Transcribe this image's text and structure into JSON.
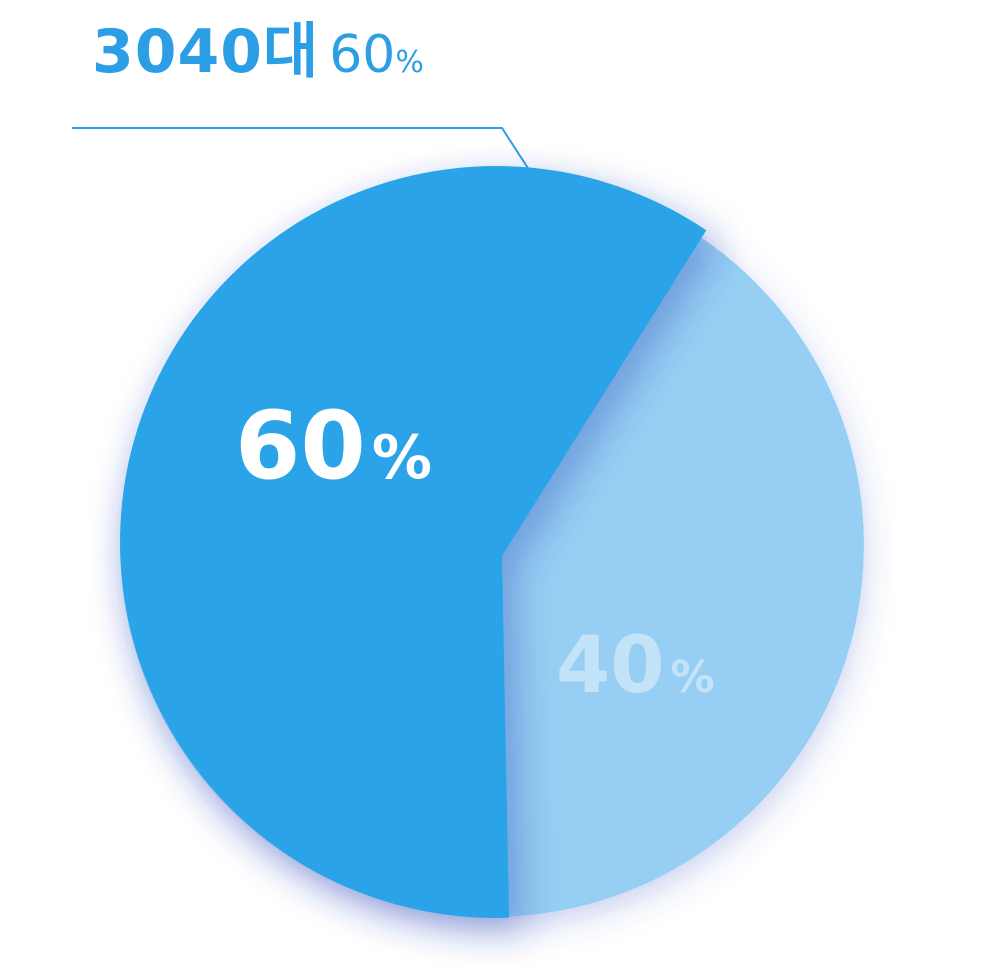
{
  "chart_data": {
    "type": "pie",
    "title": "",
    "slices": [
      {
        "label": "3040대",
        "value": 60,
        "display": "60",
        "unit": "%",
        "color": "#2ca3e8"
      },
      {
        "label": "",
        "value": 40,
        "display": "40",
        "unit": "%",
        "color": "#96cff3"
      }
    ],
    "callout": {
      "group": "3040대",
      "value": "60",
      "unit": "%"
    },
    "colors": {
      "primary": "#2ca3e8",
      "secondary": "#96cff3",
      "label_primary": "#ffffff",
      "label_secondary": "#c3e3f8",
      "callout_line": "#2c9ee6"
    }
  }
}
